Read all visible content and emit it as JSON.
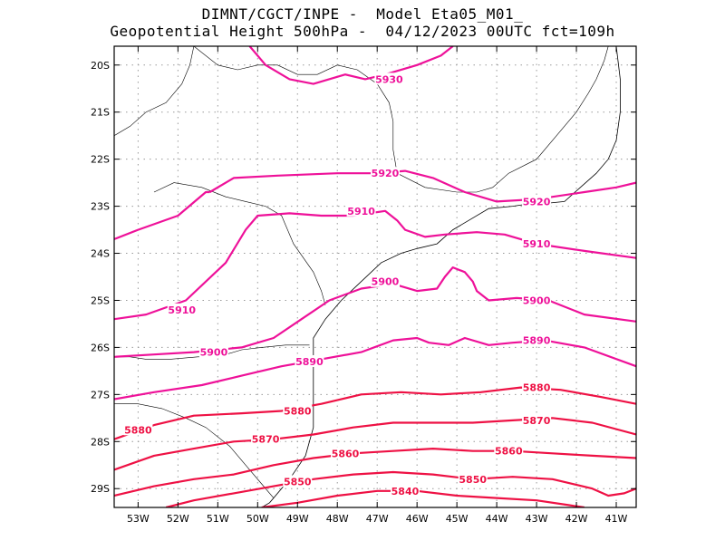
{
  "title": {
    "line1": "DIMNT/CGCT/INPE -  Model Eta05_M01_",
    "line2": "Geopotential Height 500hPa -  04/12/2023 00UTC fct=109h"
  },
  "map": {
    "lon_range": [
      -53.6,
      -40.5
    ],
    "lat_range": [
      -29.4,
      -19.6
    ],
    "x_ticks": [
      {
        "value": -53,
        "label": "53W"
      },
      {
        "value": -52,
        "label": "52W"
      },
      {
        "value": -51,
        "label": "51W"
      },
      {
        "value": -50,
        "label": "50W"
      },
      {
        "value": -49,
        "label": "49W"
      },
      {
        "value": -48,
        "label": "48W"
      },
      {
        "value": -47,
        "label": "47W"
      },
      {
        "value": -46,
        "label": "46W"
      },
      {
        "value": -45,
        "label": "45W"
      },
      {
        "value": -44,
        "label": "44W"
      },
      {
        "value": -43,
        "label": "43W"
      },
      {
        "value": -42,
        "label": "42W"
      },
      {
        "value": -41,
        "label": "41W"
      }
    ],
    "y_ticks": [
      {
        "value": -20,
        "label": "20S"
      },
      {
        "value": -21,
        "label": "21S"
      },
      {
        "value": -22,
        "label": "22S"
      },
      {
        "value": -23,
        "label": "23S"
      },
      {
        "value": -24,
        "label": "24S"
      },
      {
        "value": -25,
        "label": "25S"
      },
      {
        "value": -26,
        "label": "26S"
      },
      {
        "value": -27,
        "label": "27S"
      },
      {
        "value": -28,
        "label": "28S"
      },
      {
        "value": -29,
        "label": "29S"
      }
    ],
    "grid": "dotted",
    "colors": {
      "contour_north": "#ee1199",
      "contour_south": "#ee1144",
      "coast": "#000000"
    },
    "contours": [
      {
        "level": 5930,
        "label": "5930",
        "points": [
          [
            -50.2,
            -19.6
          ],
          [
            -49.8,
            -20.0
          ],
          [
            -49.2,
            -20.3
          ],
          [
            -48.6,
            -20.4
          ],
          [
            -47.8,
            -20.2
          ],
          [
            -47.3,
            -20.3
          ],
          [
            -46.8,
            -20.2
          ],
          [
            -46.0,
            -20.0
          ],
          [
            -45.4,
            -19.8
          ],
          [
            -45.1,
            -19.6
          ]
        ],
        "labels": [
          {
            "lon": -46.7,
            "lat": -20.3
          }
        ]
      },
      {
        "level": 5920,
        "label": "5920",
        "points": [
          [
            -51.2,
            -22.7
          ],
          [
            -50.6,
            -22.4
          ],
          [
            -49.5,
            -22.35
          ],
          [
            -48.0,
            -22.3
          ],
          [
            -47.0,
            -22.3
          ],
          [
            -46.3,
            -22.25
          ],
          [
            -45.6,
            -22.4
          ],
          [
            -44.8,
            -22.7
          ],
          [
            -44.0,
            -22.9
          ],
          [
            -43.0,
            -22.85
          ],
          [
            -41.8,
            -22.7
          ],
          [
            -41.0,
            -22.6
          ],
          [
            -40.5,
            -22.5
          ]
        ],
        "labels": [
          {
            "lon": -46.8,
            "lat": -22.3
          },
          {
            "lon": -43.0,
            "lat": -22.9
          }
        ]
      },
      {
        "level": 5910,
        "label": "5910",
        "points": [
          [
            -53.6,
            -25.4
          ],
          [
            -52.8,
            -25.3
          ],
          [
            -51.8,
            -25.0
          ],
          [
            -50.8,
            -24.2
          ],
          [
            -50.3,
            -23.5
          ],
          [
            -50.0,
            -23.2
          ],
          [
            -49.2,
            -23.15
          ],
          [
            -48.4,
            -23.2
          ],
          [
            -47.6,
            -23.2
          ],
          [
            -46.8,
            -23.1
          ],
          [
            -46.5,
            -23.3
          ],
          [
            -46.3,
            -23.5
          ],
          [
            -45.8,
            -23.65
          ],
          [
            -45.3,
            -23.6
          ],
          [
            -44.5,
            -23.55
          ],
          [
            -43.8,
            -23.6
          ],
          [
            -43.0,
            -23.8
          ],
          [
            -41.8,
            -23.95
          ],
          [
            -40.5,
            -24.1
          ]
        ],
        "labels": [
          {
            "lon": -47.4,
            "lat": -23.1
          },
          {
            "lon": -43.0,
            "lat": -23.8
          }
        ]
      },
      {
        "level": 5910,
        "label": "5910",
        "points": [
          [
            -53.6,
            -23.7
          ],
          [
            -53.0,
            -23.5
          ],
          [
            -52.0,
            -23.2
          ],
          [
            -51.3,
            -22.7
          ],
          [
            -51.2,
            -22.7
          ]
        ],
        "labels": [
          {
            "lon": -51.9,
            "lat": -25.2
          }
        ]
      },
      {
        "level": 5900,
        "label": "5900",
        "points": [
          [
            -53.6,
            -26.2
          ],
          [
            -52.6,
            -26.15
          ],
          [
            -51.6,
            -26.1
          ],
          [
            -50.4,
            -26.0
          ],
          [
            -49.6,
            -25.8
          ],
          [
            -48.9,
            -25.4
          ],
          [
            -48.2,
            -25.0
          ],
          [
            -47.4,
            -24.75
          ],
          [
            -46.6,
            -24.65
          ],
          [
            -46.0,
            -24.8
          ],
          [
            -45.5,
            -24.75
          ],
          [
            -45.3,
            -24.5
          ],
          [
            -45.1,
            -24.3
          ],
          [
            -44.8,
            -24.4
          ],
          [
            -44.6,
            -24.6
          ],
          [
            -44.5,
            -24.8
          ],
          [
            -44.2,
            -25.0
          ],
          [
            -43.5,
            -24.95
          ],
          [
            -42.7,
            -25.0
          ],
          [
            -41.8,
            -25.3
          ],
          [
            -40.5,
            -25.45
          ]
        ],
        "labels": [
          {
            "lon": -51.1,
            "lat": -26.1
          },
          {
            "lon": -46.8,
            "lat": -24.6
          },
          {
            "lon": -43.0,
            "lat": -25.0
          }
        ]
      },
      {
        "level": 5890,
        "label": "5890",
        "points": [
          [
            -53.6,
            -27.1
          ],
          [
            -52.6,
            -26.95
          ],
          [
            -51.4,
            -26.8
          ],
          [
            -50.4,
            -26.6
          ],
          [
            -49.4,
            -26.4
          ],
          [
            -48.4,
            -26.25
          ],
          [
            -47.4,
            -26.1
          ],
          [
            -46.6,
            -25.85
          ],
          [
            -46.0,
            -25.8
          ],
          [
            -45.7,
            -25.9
          ],
          [
            -45.2,
            -25.95
          ],
          [
            -44.8,
            -25.8
          ],
          [
            -44.2,
            -25.95
          ],
          [
            -43.6,
            -25.9
          ],
          [
            -42.8,
            -25.85
          ],
          [
            -41.8,
            -26.0
          ],
          [
            -40.5,
            -26.4
          ]
        ],
        "labels": [
          {
            "lon": -48.7,
            "lat": -26.3
          },
          {
            "lon": -43.0,
            "lat": -25.85
          }
        ]
      },
      {
        "level": 5880,
        "label": "5880",
        "points": [
          [
            -53.6,
            -27.95
          ],
          [
            -52.6,
            -27.65
          ],
          [
            -51.6,
            -27.45
          ],
          [
            -50.4,
            -27.4
          ],
          [
            -49.4,
            -27.35
          ],
          [
            -48.4,
            -27.2
          ],
          [
            -47.4,
            -27.0
          ],
          [
            -46.4,
            -26.95
          ],
          [
            -45.4,
            -27.0
          ],
          [
            -44.4,
            -26.95
          ],
          [
            -43.4,
            -26.85
          ],
          [
            -42.4,
            -26.9
          ],
          [
            -41.4,
            -27.05
          ],
          [
            -40.5,
            -27.2
          ]
        ],
        "labels": [
          {
            "lon": -53.0,
            "lat": -27.75
          },
          {
            "lon": -49.0,
            "lat": -27.35
          },
          {
            "lon": -43.0,
            "lat": -26.85
          }
        ]
      },
      {
        "level": 5870,
        "label": "5870",
        "points": [
          [
            -53.6,
            -28.6
          ],
          [
            -52.6,
            -28.3
          ],
          [
            -51.6,
            -28.15
          ],
          [
            -50.6,
            -28.0
          ],
          [
            -49.6,
            -27.95
          ],
          [
            -48.6,
            -27.85
          ],
          [
            -47.6,
            -27.7
          ],
          [
            -46.6,
            -27.6
          ],
          [
            -45.6,
            -27.6
          ],
          [
            -44.6,
            -27.6
          ],
          [
            -43.6,
            -27.55
          ],
          [
            -42.6,
            -27.5
          ],
          [
            -41.6,
            -27.6
          ],
          [
            -40.5,
            -27.85
          ]
        ],
        "labels": [
          {
            "lon": -49.8,
            "lat": -27.95
          },
          {
            "lon": -43.0,
            "lat": -27.55
          }
        ]
      },
      {
        "level": 5860,
        "label": "5860",
        "points": [
          [
            -53.6,
            -29.15
          ],
          [
            -52.6,
            -28.95
          ],
          [
            -51.6,
            -28.8
          ],
          [
            -50.6,
            -28.7
          ],
          [
            -49.6,
            -28.5
          ],
          [
            -48.6,
            -28.35
          ],
          [
            -47.6,
            -28.25
          ],
          [
            -46.6,
            -28.2
          ],
          [
            -45.6,
            -28.15
          ],
          [
            -44.6,
            -28.2
          ],
          [
            -43.6,
            -28.2
          ],
          [
            -42.6,
            -28.25
          ],
          [
            -41.6,
            -28.3
          ],
          [
            -40.5,
            -28.35
          ]
        ],
        "labels": [
          {
            "lon": -47.8,
            "lat": -28.25
          },
          {
            "lon": -43.7,
            "lat": -28.2
          }
        ]
      },
      {
        "level": 5850,
        "label": "5850",
        "points": [
          [
            -52.3,
            -29.4
          ],
          [
            -51.6,
            -29.25
          ],
          [
            -50.6,
            -29.1
          ],
          [
            -49.6,
            -28.95
          ],
          [
            -48.6,
            -28.8
          ],
          [
            -47.6,
            -28.7
          ],
          [
            -46.6,
            -28.65
          ],
          [
            -45.6,
            -28.7
          ],
          [
            -44.6,
            -28.8
          ],
          [
            -43.6,
            -28.75
          ],
          [
            -42.6,
            -28.8
          ],
          [
            -41.6,
            -29.0
          ],
          [
            -41.2,
            -29.15
          ],
          [
            -40.8,
            -29.1
          ],
          [
            -40.5,
            -29.0
          ]
        ],
        "labels": [
          {
            "lon": -49.0,
            "lat": -28.85
          },
          {
            "lon": -44.6,
            "lat": -28.8
          }
        ]
      },
      {
        "level": 5840,
        "label": "5840",
        "points": [
          [
            -49.9,
            -29.4
          ],
          [
            -49.0,
            -29.3
          ],
          [
            -48.0,
            -29.15
          ],
          [
            -47.0,
            -29.05
          ],
          [
            -46.0,
            -29.05
          ],
          [
            -45.0,
            -29.15
          ],
          [
            -44.0,
            -29.2
          ],
          [
            -43.0,
            -29.25
          ],
          [
            -42.2,
            -29.35
          ],
          [
            -41.8,
            -29.4
          ]
        ],
        "labels": [
          {
            "lon": -46.3,
            "lat": -29.05
          }
        ]
      }
    ],
    "coastline": [
      [
        [
          -41.0,
          -21.6
        ],
        [
          -41.2,
          -22.0
        ],
        [
          -41.5,
          -22.3
        ],
        [
          -41.9,
          -22.6
        ],
        [
          -42.3,
          -22.9
        ],
        [
          -42.9,
          -22.95
        ],
        [
          -43.2,
          -22.95
        ],
        [
          -43.6,
          -23.0
        ],
        [
          -44.2,
          -23.05
        ],
        [
          -44.7,
          -23.3
        ],
        [
          -45.1,
          -23.5
        ],
        [
          -45.5,
          -23.8
        ],
        [
          -46.0,
          -23.9
        ],
        [
          -46.4,
          -24.0
        ],
        [
          -46.9,
          -24.2
        ],
        [
          -47.4,
          -24.6
        ],
        [
          -47.9,
          -25.0
        ],
        [
          -48.3,
          -25.4
        ],
        [
          -48.6,
          -25.8
        ],
        [
          -48.6,
          -26.2
        ],
        [
          -48.6,
          -26.7
        ],
        [
          -48.6,
          -27.2
        ],
        [
          -48.6,
          -27.7
        ],
        [
          -48.8,
          -28.3
        ],
        [
          -49.2,
          -28.8
        ],
        [
          -49.7,
          -29.3
        ],
        [
          -49.9,
          -29.4
        ]
      ],
      [
        [
          -41.0,
          -19.6
        ],
        [
          -40.9,
          -20.3
        ],
        [
          -40.9,
          -21.0
        ],
        [
          -41.0,
          -21.6
        ]
      ]
    ],
    "borders": [
      [
        [
          -51.6,
          -19.6
        ],
        [
          -51.0,
          -20.0
        ],
        [
          -50.5,
          -20.1
        ],
        [
          -50.0,
          -20.0
        ],
        [
          -49.5,
          -20.0
        ],
        [
          -49.0,
          -20.2
        ],
        [
          -48.5,
          -20.2
        ],
        [
          -48.0,
          -20.0
        ],
        [
          -47.5,
          -20.1
        ],
        [
          -47.0,
          -20.4
        ],
        [
          -46.7,
          -20.8
        ],
        [
          -46.6,
          -21.2
        ],
        [
          -46.6,
          -21.8
        ],
        [
          -46.5,
          -22.3
        ],
        [
          -45.8,
          -22.6
        ],
        [
          -45.0,
          -22.7
        ],
        [
          -44.5,
          -22.7
        ],
        [
          -44.1,
          -22.6
        ],
        [
          -43.7,
          -22.3
        ],
        [
          -43.0,
          -22.0
        ],
        [
          -42.5,
          -21.5
        ],
        [
          -42.0,
          -21.0
        ],
        [
          -41.7,
          -20.6
        ],
        [
          -41.5,
          -20.3
        ],
        [
          -41.3,
          -19.9
        ],
        [
          -41.2,
          -19.6
        ]
      ],
      [
        [
          -52.6,
          -22.7
        ],
        [
          -52.1,
          -22.5
        ],
        [
          -51.4,
          -22.6
        ],
        [
          -50.8,
          -22.8
        ],
        [
          -50.3,
          -22.9
        ],
        [
          -49.8,
          -23.0
        ],
        [
          -49.4,
          -23.2
        ],
        [
          -49.1,
          -23.8
        ],
        [
          -48.6,
          -24.4
        ],
        [
          -48.4,
          -24.8
        ],
        [
          -48.3,
          -25.1
        ]
      ],
      [
        [
          -53.6,
          -26.2
        ],
        [
          -53.2,
          -26.2
        ],
        [
          -52.8,
          -26.25
        ],
        [
          -52.2,
          -26.25
        ],
        [
          -51.5,
          -26.2
        ],
        [
          -51.0,
          -26.2
        ],
        [
          -50.4,
          -26.05
        ],
        [
          -49.9,
          -26.0
        ],
        [
          -49.3,
          -25.95
        ],
        [
          -48.7,
          -25.95
        ]
      ],
      [
        [
          -53.6,
          -27.2
        ],
        [
          -53.0,
          -27.2
        ],
        [
          -52.4,
          -27.3
        ],
        [
          -51.8,
          -27.5
        ],
        [
          -51.3,
          -27.7
        ],
        [
          -50.7,
          -28.1
        ],
        [
          -50.3,
          -28.5
        ],
        [
          -49.9,
          -28.9
        ],
        [
          -49.6,
          -29.2
        ]
      ],
      [
        [
          -53.6,
          -21.5
        ],
        [
          -53.2,
          -21.3
        ],
        [
          -52.8,
          -21.0
        ],
        [
          -52.3,
          -20.8
        ],
        [
          -51.9,
          -20.4
        ],
        [
          -51.7,
          -20.0
        ],
        [
          -51.6,
          -19.6
        ]
      ]
    ]
  }
}
